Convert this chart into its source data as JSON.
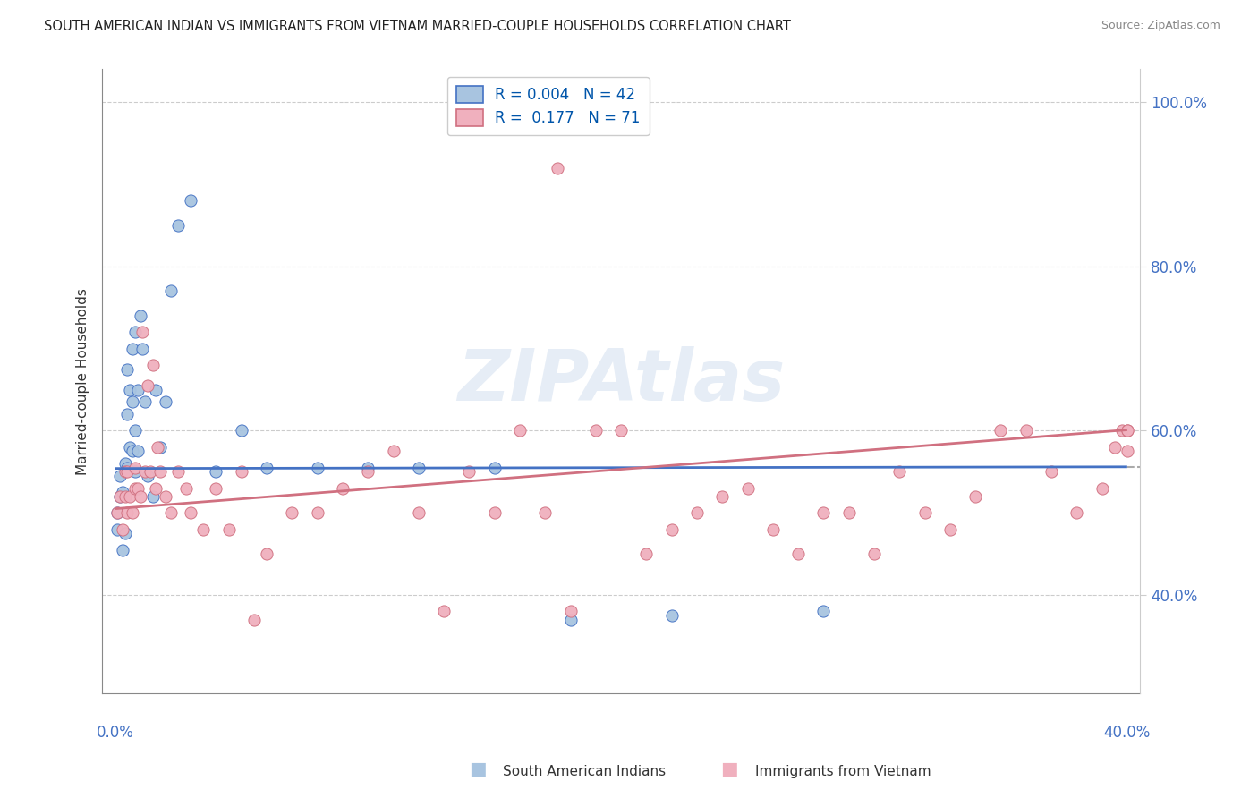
{
  "title": "SOUTH AMERICAN INDIAN VS IMMIGRANTS FROM VIETNAM MARRIED-COUPLE HOUSEHOLDS CORRELATION CHART",
  "source": "Source: ZipAtlas.com",
  "legend_label1": "South American Indians",
  "legend_label2": "Immigrants from Vietnam",
  "R1": "0.004",
  "N1": "42",
  "R2": "0.177",
  "N2": "71",
  "color_blue": "#a8c4e0",
  "color_pink": "#f0b0be",
  "line_blue": "#4472c4",
  "line_pink": "#d07080",
  "line_dash": "#aaaaaa",
  "watermark_text": "ZIPAtlas",
  "xlim": [
    0.0,
    0.4
  ],
  "ylim": [
    0.28,
    1.04
  ],
  "ytick_vals": [
    0.4,
    0.6,
    0.8,
    1.0
  ],
  "ytick_labels": [
    "40.0%",
    "60.0%",
    "80.0%",
    "100.0%"
  ],
  "gridline_color": "#cccccc",
  "blue_line_y_intercept": 0.554,
  "blue_line_slope": 0.005,
  "pink_line_y_intercept": 0.505,
  "pink_line_slope": 0.24,
  "blue_x": [
    0.001,
    0.001,
    0.002,
    0.002,
    0.003,
    0.003,
    0.004,
    0.004,
    0.005,
    0.005,
    0.005,
    0.006,
    0.006,
    0.007,
    0.007,
    0.007,
    0.008,
    0.008,
    0.008,
    0.009,
    0.009,
    0.01,
    0.011,
    0.012,
    0.013,
    0.015,
    0.016,
    0.018,
    0.02,
    0.022,
    0.025,
    0.03,
    0.04,
    0.05,
    0.06,
    0.08,
    0.1,
    0.12,
    0.15,
    0.18,
    0.22,
    0.28
  ],
  "blue_y": [
    0.5,
    0.48,
    0.52,
    0.545,
    0.455,
    0.525,
    0.56,
    0.475,
    0.555,
    0.62,
    0.675,
    0.58,
    0.65,
    0.635,
    0.7,
    0.575,
    0.6,
    0.55,
    0.72,
    0.65,
    0.575,
    0.74,
    0.7,
    0.635,
    0.545,
    0.52,
    0.65,
    0.58,
    0.635,
    0.77,
    0.85,
    0.88,
    0.55,
    0.6,
    0.555,
    0.555,
    0.555,
    0.555,
    0.555,
    0.37,
    0.375,
    0.38
  ],
  "pink_x": [
    0.001,
    0.002,
    0.003,
    0.004,
    0.004,
    0.005,
    0.005,
    0.006,
    0.007,
    0.008,
    0.008,
    0.009,
    0.01,
    0.011,
    0.012,
    0.013,
    0.014,
    0.015,
    0.016,
    0.017,
    0.018,
    0.02,
    0.022,
    0.025,
    0.028,
    0.03,
    0.035,
    0.04,
    0.045,
    0.05,
    0.055,
    0.06,
    0.07,
    0.08,
    0.09,
    0.1,
    0.11,
    0.12,
    0.13,
    0.14,
    0.15,
    0.16,
    0.17,
    0.175,
    0.18,
    0.19,
    0.2,
    0.21,
    0.22,
    0.23,
    0.24,
    0.25,
    0.26,
    0.27,
    0.28,
    0.29,
    0.3,
    0.31,
    0.32,
    0.33,
    0.34,
    0.35,
    0.36,
    0.37,
    0.38,
    0.39,
    0.395,
    0.398,
    0.4,
    0.4,
    0.4
  ],
  "pink_y": [
    0.5,
    0.52,
    0.48,
    0.55,
    0.52,
    0.5,
    0.55,
    0.52,
    0.5,
    0.555,
    0.53,
    0.53,
    0.52,
    0.72,
    0.55,
    0.655,
    0.55,
    0.68,
    0.53,
    0.58,
    0.55,
    0.52,
    0.5,
    0.55,
    0.53,
    0.5,
    0.48,
    0.53,
    0.48,
    0.55,
    0.37,
    0.45,
    0.5,
    0.5,
    0.53,
    0.55,
    0.575,
    0.5,
    0.38,
    0.55,
    0.5,
    0.6,
    0.5,
    0.92,
    0.38,
    0.6,
    0.6,
    0.45,
    0.48,
    0.5,
    0.52,
    0.53,
    0.48,
    0.45,
    0.5,
    0.5,
    0.45,
    0.55,
    0.5,
    0.48,
    0.52,
    0.6,
    0.6,
    0.55,
    0.5,
    0.53,
    0.58,
    0.6,
    0.575,
    0.6,
    0.6
  ]
}
